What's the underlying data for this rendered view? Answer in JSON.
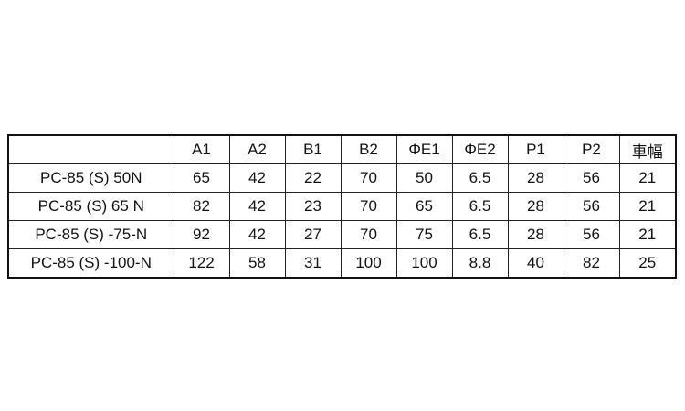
{
  "table": {
    "headers": [
      "",
      "A1",
      "A2",
      "B1",
      "B2",
      "ΦE1",
      "ΦE2",
      "P1",
      "P2",
      "車幅"
    ],
    "rows": [
      [
        "PC-85 (S) 50N",
        "65",
        "42",
        "22",
        "70",
        "50",
        "6.5",
        "28",
        "56",
        "21"
      ],
      [
        "PC-85 (S) 65 N",
        "82",
        "42",
        "23",
        "70",
        "65",
        "6.5",
        "28",
        "56",
        "21"
      ],
      [
        "PC-85 (S) -75-N",
        "92",
        "42",
        "27",
        "70",
        "75",
        "6.5",
        "28",
        "56",
        "21"
      ],
      [
        "PC-85 (S) -100-N",
        "122",
        "58",
        "31",
        "100",
        "100",
        "8.8",
        "40",
        "82",
        "25"
      ]
    ]
  }
}
